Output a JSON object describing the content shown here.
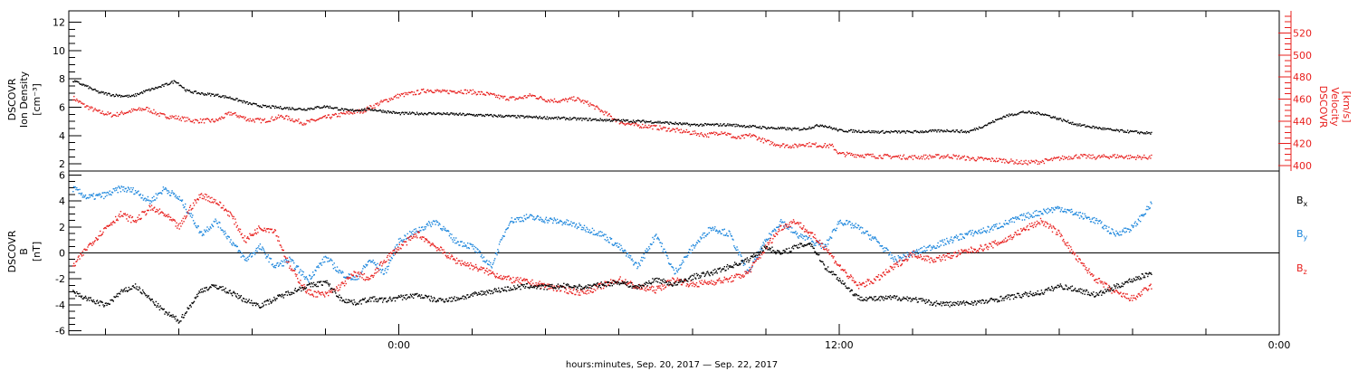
{
  "chart_data": [
    {
      "type": "scatter",
      "panel": "plasma",
      "ylabel_left": [
        "DSCOVR",
        "Ion Density",
        "[cm⁻³]"
      ],
      "ylabel_right": [
        "DSCOVR",
        "Velocity",
        "[km/s]"
      ],
      "ylim_left": [
        1.5,
        12.8
      ],
      "yticks_left": [
        "2",
        "4",
        "6",
        "8",
        "10",
        "12"
      ],
      "ylim_right": [
        395,
        540
      ],
      "yticks_right": [
        "400",
        "420",
        "440",
        "460",
        "480",
        "500",
        "520"
      ],
      "series": [
        {
          "axis": "left",
          "color": "#000000",
          "x": [
            -8.9,
            -8.6,
            -8.2,
            -7.8,
            -7.3,
            -6.9,
            -6.5,
            -6.1,
            -5.8,
            -5.4,
            -5.0,
            -4.6,
            -4.1,
            -3.7,
            -3.2,
            -2.6,
            -2.0,
            -1.4,
            -0.8,
            0.0,
            1.0,
            2.0,
            3.0,
            4.0,
            5.0,
            6.0,
            7.0,
            8.0,
            9.0,
            10.0,
            10.7,
            11.0,
            11.5,
            12.0,
            13.0,
            14.0,
            15.0,
            15.5,
            16.0,
            16.5,
            17.0,
            17.5,
            18.0,
            18.5,
            19.0,
            19.5,
            20.0,
            20.5
          ],
          "y": [
            7.9,
            7.6,
            7.1,
            6.9,
            6.8,
            7.2,
            7.5,
            7.9,
            7.2,
            7.0,
            6.9,
            6.7,
            6.3,
            6.1,
            6.0,
            5.9,
            6.1,
            5.8,
            5.9,
            5.6,
            5.6,
            5.5,
            5.4,
            5.3,
            5.2,
            5.1,
            5.0,
            4.8,
            4.8,
            4.6,
            4.5,
            4.5,
            4.8,
            4.4,
            4.3,
            4.3,
            4.4,
            4.3,
            4.8,
            5.4,
            5.7,
            5.6,
            5.2,
            4.8,
            4.6,
            4.4,
            4.3,
            4.2
          ]
        },
        {
          "axis": "right",
          "color": "#e8201e",
          "x": [
            -8.9,
            -8.6,
            -8.2,
            -7.8,
            -7.3,
            -6.9,
            -6.5,
            -6.1,
            -5.6,
            -5.0,
            -4.6,
            -4.1,
            -3.7,
            -3.2,
            -2.6,
            -2.0,
            -1.4,
            -1.0,
            -0.4,
            0.0,
            0.4,
            0.8,
            1.2,
            1.6,
            2.0,
            2.4,
            2.8,
            3.2,
            3.6,
            4.0,
            4.4,
            4.8,
            5.2,
            5.6,
            6.0,
            6.4,
            6.8,
            7.2,
            7.6,
            8.0,
            8.4,
            8.8,
            9.2,
            9.6,
            10.0,
            10.4,
            10.8,
            11.0,
            11.4,
            11.8,
            12.0,
            13.0,
            14.0,
            15.0,
            15.5,
            16.0,
            16.5,
            17.0,
            17.5,
            18.0,
            18.5,
            19.0,
            19.5,
            20.0,
            20.5
          ],
          "y": [
            462,
            455,
            449,
            446,
            450,
            452,
            446,
            444,
            441,
            441,
            448,
            442,
            441,
            445,
            439,
            444,
            448,
            450,
            459,
            464,
            466,
            469,
            467,
            468,
            467,
            465,
            462,
            461,
            464,
            460,
            459,
            461,
            456,
            448,
            440,
            437,
            436,
            434,
            432,
            430,
            428,
            431,
            425,
            428,
            422,
            419,
            418,
            420,
            419,
            418,
            411,
            409,
            408,
            409,
            407,
            406,
            405,
            403,
            404,
            407,
            409,
            408,
            409,
            408,
            408
          ]
        }
      ]
    },
    {
      "type": "scatter",
      "panel": "magnetic-field",
      "ylabel_left": [
        "DSCOVR",
        "B",
        "[nT]"
      ],
      "ylim": [
        -6.3,
        6.3
      ],
      "yticks": [
        "-6",
        "-4",
        "-2",
        "0",
        "2",
        "4",
        "6"
      ],
      "legend": [
        {
          "label": "B",
          "sub": "x",
          "color": "#000000"
        },
        {
          "label": "B",
          "sub": "y",
          "color": "#1c86dc"
        },
        {
          "label": "B",
          "sub": "z",
          "color": "#e8201e"
        }
      ],
      "series": [
        {
          "name": "Bx",
          "color": "#000000",
          "x": [
            -8.9,
            -8.5,
            -8.0,
            -7.6,
            -7.2,
            -6.8,
            -6.4,
            -6.0,
            -5.7,
            -5.4,
            -5.0,
            -4.6,
            -4.2,
            -3.8,
            -3.4,
            -3.0,
            -2.5,
            -2.0,
            -1.6,
            -1.2,
            -0.8,
            -0.4,
            0.0,
            0.5,
            1.0,
            1.5,
            2.0,
            2.5,
            3.0,
            3.5,
            4.0,
            4.5,
            5.0,
            5.5,
            6.0,
            6.5,
            7.0,
            7.5,
            8.0,
            8.5,
            9.0,
            9.5,
            10.0,
            10.4,
            10.8,
            11.2,
            11.6,
            12.0,
            12.5,
            13.0,
            13.5,
            14.0,
            14.5,
            15.0,
            15.5,
            16.0,
            16.5,
            17.0,
            17.5,
            18.0,
            18.5,
            19.0,
            19.5,
            20.0,
            20.5
          ],
          "y": [
            -3.0,
            -3.5,
            -4.0,
            -3.0,
            -2.5,
            -3.5,
            -4.5,
            -5.2,
            -4.0,
            -2.8,
            -2.5,
            -3.0,
            -3.6,
            -4.0,
            -3.5,
            -3.0,
            -2.5,
            -2.2,
            -3.5,
            -3.8,
            -3.5,
            -3.6,
            -3.4,
            -3.2,
            -3.6,
            -3.5,
            -3.2,
            -2.9,
            -2.7,
            -2.5,
            -2.6,
            -2.5,
            -2.6,
            -2.4,
            -2.2,
            -2.6,
            -2.0,
            -2.4,
            -1.8,
            -1.5,
            -1.0,
            -0.5,
            0.5,
            0.0,
            0.5,
            0.8,
            -1.0,
            -2.0,
            -3.4,
            -3.5,
            -3.4,
            -3.5,
            -3.8,
            -3.9,
            -3.8,
            -3.7,
            -3.4,
            -3.2,
            -3.0,
            -2.5,
            -2.8,
            -3.2,
            -2.6,
            -2.0,
            -1.5
          ]
        },
        {
          "name": "By",
          "color": "#1c86dc",
          "x": [
            -8.9,
            -8.5,
            -8.0,
            -7.6,
            -7.2,
            -6.8,
            -6.4,
            -6.0,
            -5.7,
            -5.4,
            -5.0,
            -4.6,
            -4.2,
            -3.8,
            -3.4,
            -3.0,
            -2.5,
            -2.0,
            -1.6,
            -1.2,
            -0.8,
            -0.4,
            0.0,
            0.5,
            1.0,
            1.5,
            2.0,
            2.5,
            3.0,
            3.5,
            4.0,
            4.5,
            5.0,
            5.5,
            6.0,
            6.5,
            7.0,
            7.5,
            8.0,
            8.5,
            9.0,
            9.5,
            10.0,
            10.4,
            10.8,
            11.2,
            11.6,
            12.0,
            12.5,
            13.0,
            13.5,
            14.0,
            14.5,
            15.0,
            15.5,
            16.0,
            16.5,
            17.0,
            17.5,
            18.0,
            18.5,
            19.0,
            19.5,
            20.0,
            20.5
          ],
          "y": [
            5.0,
            4.3,
            4.5,
            5.0,
            4.8,
            4.0,
            5.0,
            4.2,
            3.0,
            1.5,
            2.5,
            1.0,
            -0.5,
            0.5,
            -1.0,
            -0.5,
            -2.0,
            -0.3,
            -1.5,
            -2.0,
            -0.5,
            -1.5,
            1.0,
            1.8,
            2.5,
            1.0,
            0.5,
            -1.0,
            2.5,
            2.8,
            2.6,
            2.4,
            2.0,
            1.5,
            0.5,
            -1.0,
            1.5,
            -1.5,
            0.5,
            2.0,
            1.5,
            -1.5,
            1.0,
            2.5,
            1.5,
            1.0,
            0.5,
            2.5,
            2.0,
            1.0,
            -0.5,
            0.0,
            0.5,
            1.0,
            1.5,
            1.8,
            2.3,
            2.8,
            3.2,
            3.5,
            3.0,
            2.5,
            1.5,
            2.0,
            3.8
          ]
        },
        {
          "name": "Bz",
          "color": "#e8201e",
          "x": [
            -8.9,
            -8.5,
            -8.0,
            -7.6,
            -7.2,
            -6.8,
            -6.4,
            -6.0,
            -5.7,
            -5.4,
            -5.0,
            -4.6,
            -4.2,
            -3.8,
            -3.4,
            -3.0,
            -2.5,
            -2.0,
            -1.6,
            -1.2,
            -0.8,
            -0.4,
            0.0,
            0.5,
            1.0,
            1.5,
            2.0,
            2.5,
            3.0,
            3.5,
            4.0,
            4.5,
            5.0,
            5.5,
            6.0,
            6.5,
            7.0,
            7.5,
            8.0,
            8.5,
            9.0,
            9.5,
            10.0,
            10.4,
            10.8,
            11.2,
            11.6,
            12.0,
            12.5,
            13.0,
            13.5,
            14.0,
            14.5,
            15.0,
            15.5,
            16.0,
            16.5,
            17.0,
            17.5,
            18.0,
            18.5,
            19.0,
            19.5,
            20.0,
            20.5
          ],
          "y": [
            -1.0,
            0.5,
            2.0,
            3.0,
            2.5,
            3.5,
            3.0,
            2.0,
            3.5,
            4.5,
            4.0,
            3.0,
            1.0,
            2.0,
            1.8,
            -1.0,
            -3.0,
            -3.2,
            -2.5,
            -1.5,
            -2.0,
            -0.5,
            0.5,
            1.5,
            0.5,
            -0.5,
            -1.0,
            -1.5,
            -2.0,
            -2.2,
            -2.5,
            -2.8,
            -3.0,
            -2.5,
            -2.0,
            -2.6,
            -2.8,
            -2.0,
            -2.4,
            -2.2,
            -2.0,
            -1.5,
            0.5,
            2.0,
            2.5,
            1.5,
            0.5,
            -1.0,
            -2.5,
            -2.0,
            -1.0,
            0.0,
            -0.5,
            -0.2,
            0.2,
            0.5,
            1.0,
            1.8,
            2.5,
            1.5,
            -0.5,
            -2.0,
            -3.0,
            -3.5,
            -2.5
          ]
        }
      ]
    }
  ],
  "x_axis": {
    "label": "hours:minutes, Sep. 20, 2017 — Sep. 22, 2017",
    "xlim": [
      -9.0,
      24.0
    ],
    "ticks": [
      {
        "value": 0,
        "label": "0:00"
      },
      {
        "value": 12,
        "label": "12:00"
      },
      {
        "value": 24,
        "label": "0:00"
      }
    ]
  }
}
